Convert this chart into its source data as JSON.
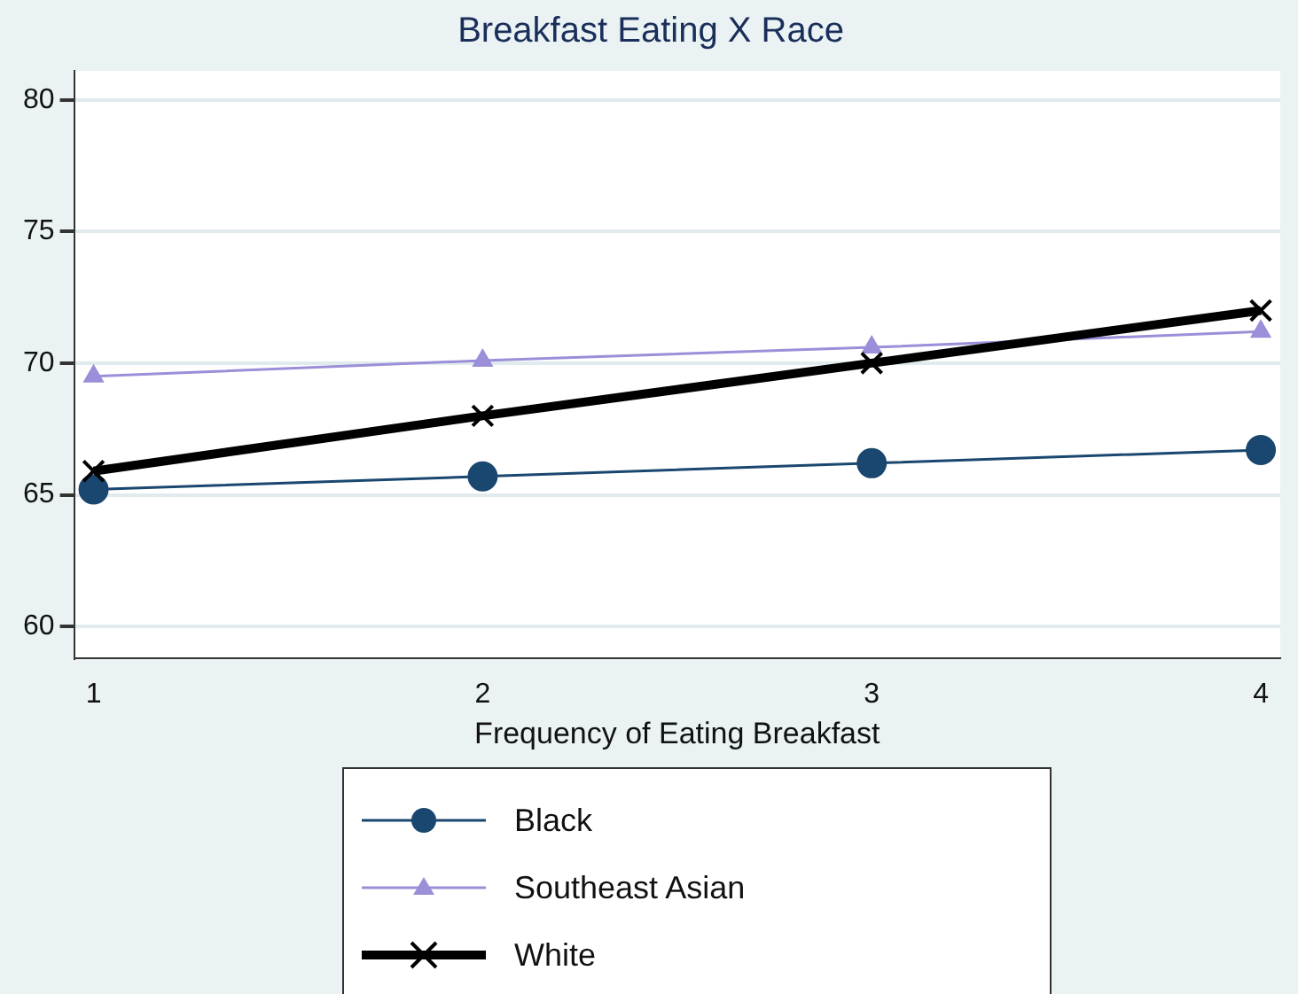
{
  "chart_data": {
    "type": "line",
    "title": "Breakfast Eating X Race",
    "xlabel": "Frequency of Eating Breakfast",
    "x": [
      1,
      2,
      3,
      4
    ],
    "xlim": [
      0.95,
      4.05
    ],
    "xticks": [
      1,
      2,
      3,
      4
    ],
    "ylim": [
      58.8,
      81.1
    ],
    "yticks": [
      60,
      65,
      70,
      75,
      80
    ],
    "grid": "y",
    "legend": "bottom",
    "line_style": "solid",
    "series": [
      {
        "name": "Black",
        "color": "#1a476f",
        "marker": "circle",
        "values": [
          65.2,
          65.7,
          66.2,
          66.7
        ]
      },
      {
        "name": "Southeast Asian",
        "color": "#9a8fd8",
        "marker": "triangle",
        "values": [
          69.5,
          70.1,
          70.6,
          71.2
        ]
      },
      {
        "name": "White",
        "color": "#000000",
        "marker": "cross",
        "values": [
          65.9,
          68,
          70,
          72
        ]
      }
    ]
  }
}
